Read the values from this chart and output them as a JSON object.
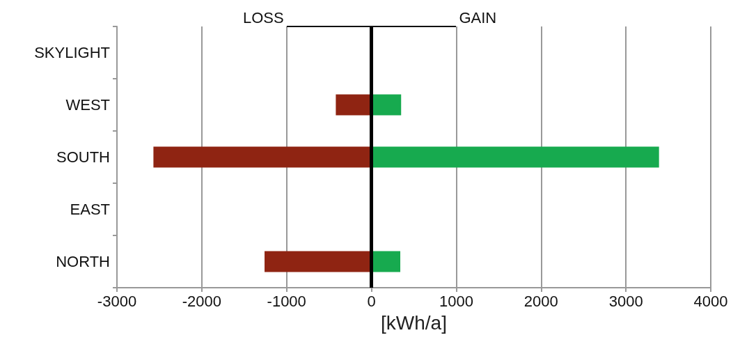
{
  "chart_data": {
    "type": "bar",
    "orientation": "horizontal",
    "stacked": true,
    "categories": [
      "SKYLIGHT",
      "WEST",
      "SOUTH",
      "EAST",
      "NORTH"
    ],
    "series": [
      {
        "color": "#8f2412",
        "values": [
          null,
          -420,
          -2570,
          null,
          -1260
        ]
      },
      {
        "color": "#17aa4f",
        "values": [
          null,
          350,
          3390,
          null,
          340
        ]
      }
    ],
    "xlabel": "[kWh/a]",
    "xlim": [
      -3000,
      4000
    ],
    "xticks": [
      -3000,
      -2000,
      -1000,
      0,
      1000,
      2000,
      3000,
      4000
    ],
    "grid": "x",
    "ref_lines": [
      {
        "axis": "x",
        "value": 0,
        "color": "#000000"
      }
    ],
    "annotations": [
      "LOSS",
      "GAIN"
    ]
  }
}
